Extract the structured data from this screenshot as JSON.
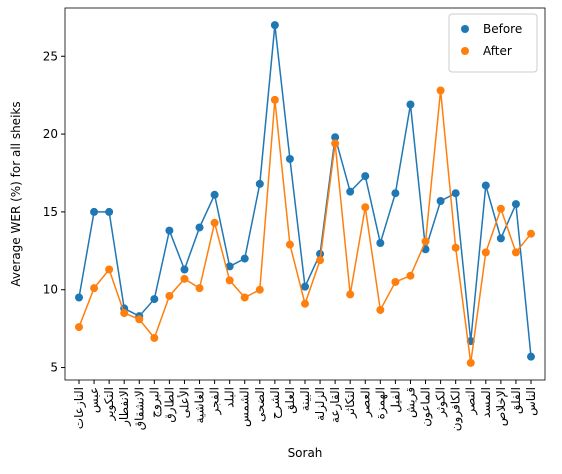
{
  "chart_data": {
    "type": "line",
    "xlabel": "Sorah",
    "ylabel": "Average WER (%) for all sheiks",
    "categories": [
      "النازعات",
      "عبس",
      "التكوير",
      "الانفطار",
      "الانشقاق",
      "البروج",
      "الطارق",
      "الأعلى",
      "الغاشية",
      "الفجر",
      "البلد",
      "الشمس",
      "الضحى",
      "الشرح",
      "العلق",
      "البينة",
      "الزلزلة",
      "القارعة",
      "التكاثر",
      "العصر",
      "الهمزة",
      "الفيل",
      "قريش",
      "الماعون",
      "الكوثر",
      "الكافرون",
      "النصر",
      "المسد",
      "الإخلاص",
      "الفلق",
      "الناس"
    ],
    "series": [
      {
        "name": "Before",
        "color": "#1f77b4",
        "values": [
          9.5,
          15,
          15,
          8.8,
          8.3,
          9.4,
          13.8,
          11.3,
          14,
          16.1,
          11.5,
          12,
          16.8,
          27,
          18.4,
          10.2,
          12.3,
          19.8,
          16.3,
          17.3,
          13,
          16.2,
          21.9,
          12.6,
          15.7,
          16.2,
          6.7,
          16.7,
          13.3,
          15.5,
          5.7
        ]
      },
      {
        "name": "After",
        "color": "#ff7f0e",
        "values": [
          7.6,
          10.1,
          11.3,
          8.5,
          8.1,
          6.9,
          9.6,
          10.7,
          10.1,
          14.3,
          10.6,
          9.5,
          10,
          22.2,
          12.9,
          9.1,
          11.9,
          19.4,
          9.7,
          15.3,
          8.7,
          10.5,
          10.9,
          13.1,
          22.8,
          12.7,
          5.3,
          12.4,
          15.2,
          12.4,
          13.6
        ]
      }
    ],
    "ylim": [
      4.2,
      28.1
    ],
    "yticks": [
      5,
      10,
      15,
      20,
      25
    ],
    "legend": "upper right"
  }
}
